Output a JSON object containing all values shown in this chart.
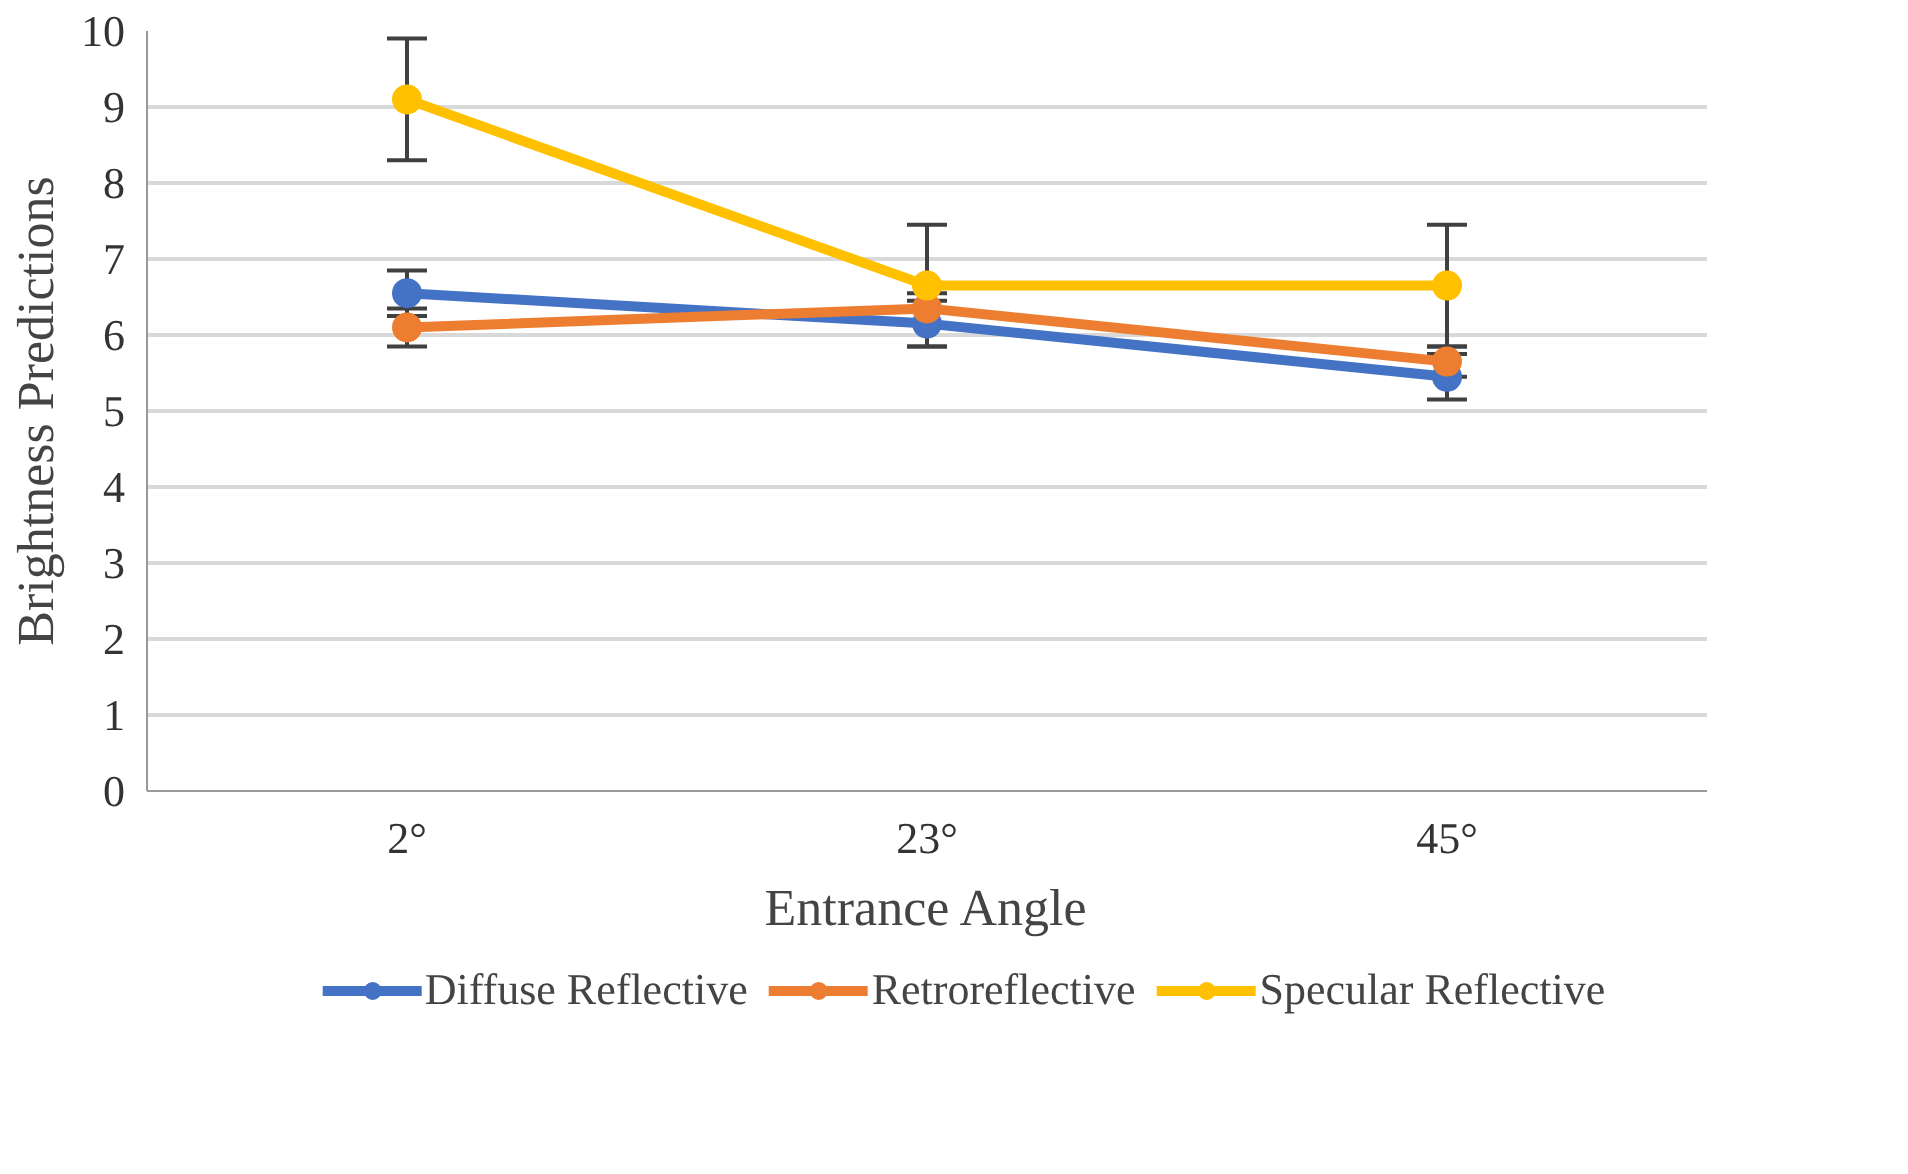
{
  "chart_data": {
    "type": "line",
    "xlabel": "Entrance Angle",
    "ylabel": "Brightness Predictions",
    "categories": [
      "2°",
      "23°",
      "45°"
    ],
    "series": [
      {
        "name": "Diffuse Reflective",
        "color": "#4472c4",
        "values": [
          6.55,
          6.15,
          5.45
        ],
        "errors": [
          0.3,
          0.3,
          0.3
        ]
      },
      {
        "name": "Retroreflective",
        "color": "#ed7d31",
        "values": [
          6.1,
          6.35,
          5.65
        ],
        "errors": [
          0.25,
          0.2,
          0.2
        ]
      },
      {
        "name": "Specular Reflective",
        "color": "#ffc000",
        "values": [
          9.1,
          6.65,
          6.65
        ],
        "errors": [
          0.8,
          0.8,
          0.8
        ]
      }
    ],
    "ylim": [
      0,
      10
    ],
    "yticks": [
      0,
      1,
      2,
      3,
      4,
      5,
      6,
      7,
      8,
      9,
      10
    ],
    "grid": "y",
    "legend": "bottom",
    "marker": "circle",
    "line_style": "solid"
  }
}
